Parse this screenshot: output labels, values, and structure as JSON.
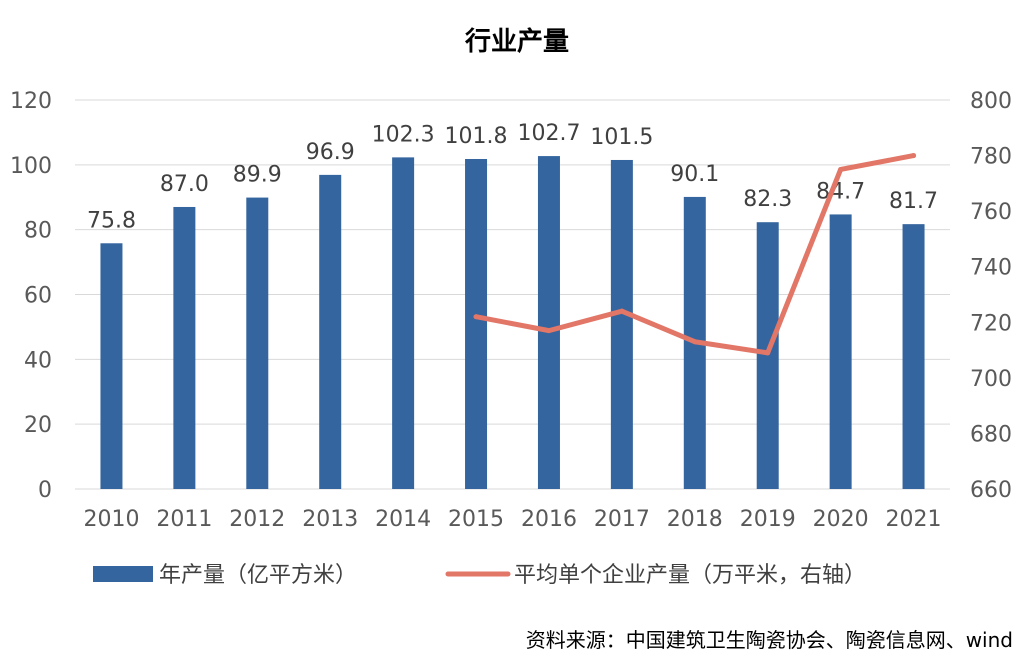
{
  "chart_data": {
    "type": "bar",
    "title": "行业产量",
    "categories": [
      "2010",
      "2011",
      "2012",
      "2013",
      "2014",
      "2015",
      "2016",
      "2017",
      "2018",
      "2019",
      "2020",
      "2021"
    ],
    "series": [
      {
        "name": "年产量（亿平方米）",
        "kind": "bar",
        "axis": "left",
        "color": "#34659e",
        "values": [
          75.8,
          87.0,
          89.9,
          96.9,
          102.3,
          101.8,
          102.7,
          101.5,
          90.1,
          82.3,
          84.7,
          81.7
        ],
        "labels": [
          "75.8",
          "87.0",
          "89.9",
          "96.9",
          "102.3",
          "101.8",
          "102.7",
          "101.5",
          "90.1",
          "82.3",
          "84.7",
          "81.7"
        ]
      },
      {
        "name": "平均单个企业产量（万平米，右轴）",
        "kind": "line",
        "axis": "right",
        "color": "#e27667",
        "values": [
          null,
          null,
          null,
          null,
          null,
          722,
          717,
          724,
          713,
          709,
          775,
          780
        ]
      }
    ],
    "y_left": {
      "min": 0,
      "max": 120,
      "ticks": [
        "0",
        "20",
        "40",
        "60",
        "80",
        "100",
        "120"
      ]
    },
    "y_right": {
      "min": 660,
      "max": 800,
      "ticks": [
        "660",
        "680",
        "700",
        "720",
        "740",
        "760",
        "780",
        "800"
      ]
    },
    "gridlines": true,
    "legend_position": "bottom"
  },
  "source": "资料来源：中国建筑卫生陶瓷协会、陶瓷信息网、wind"
}
